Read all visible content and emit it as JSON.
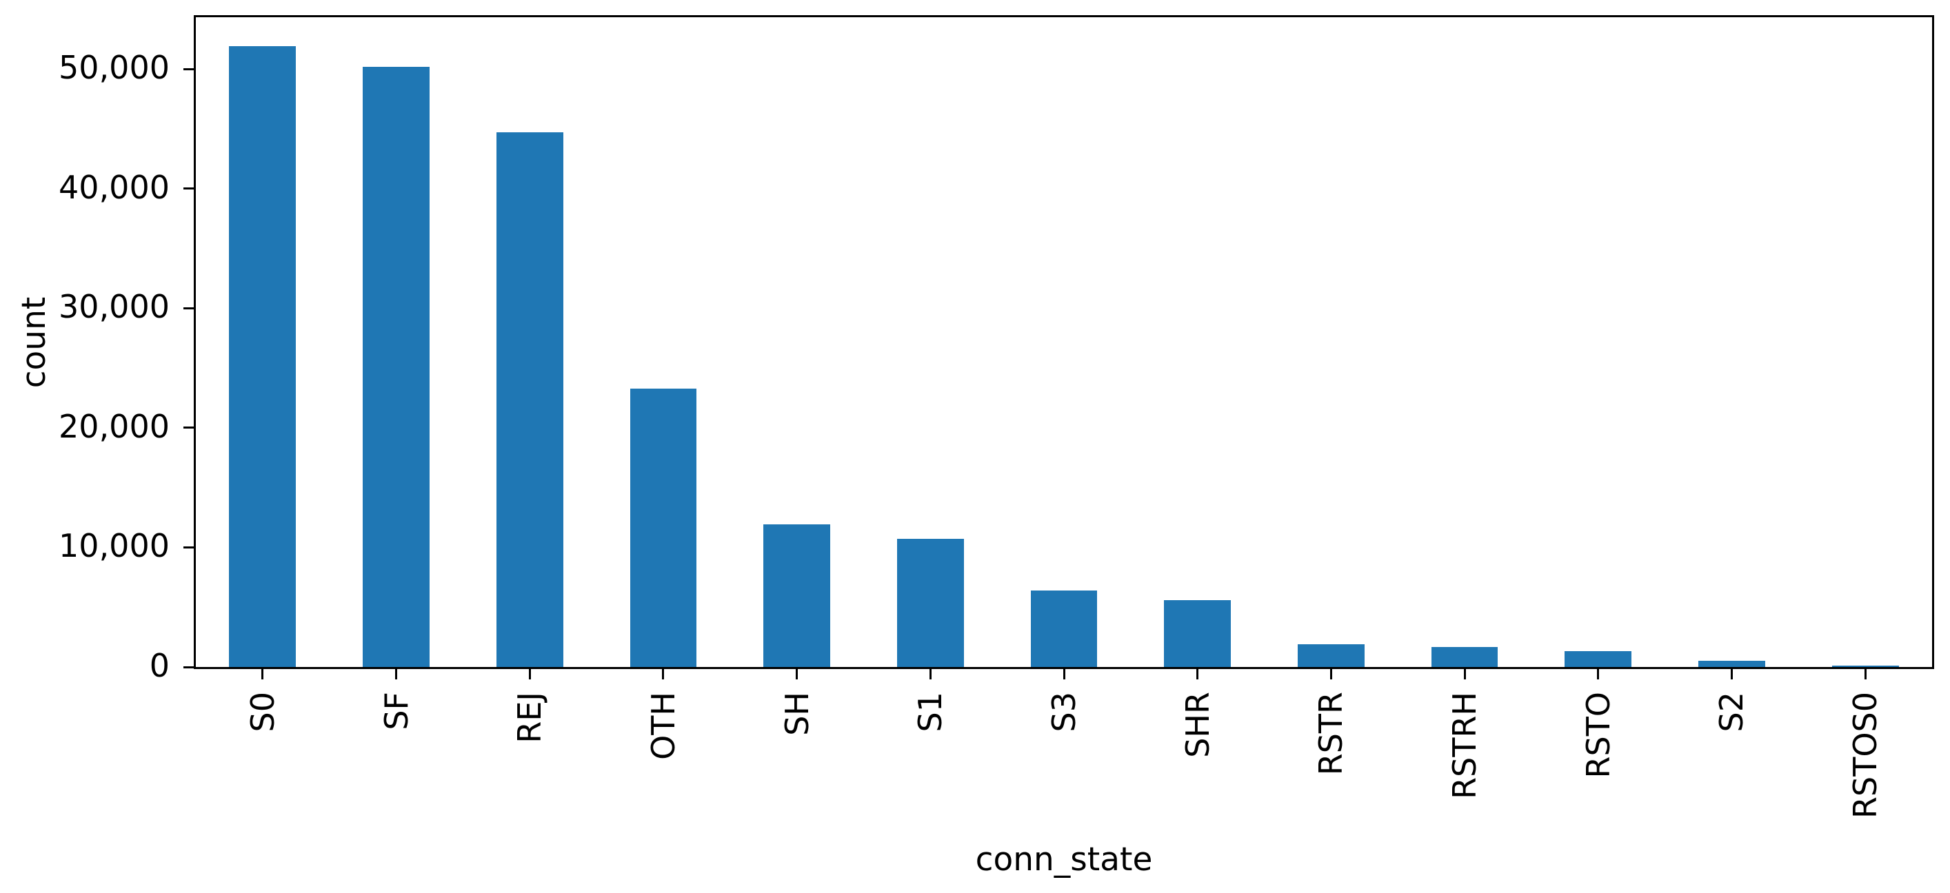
{
  "chart_data": {
    "type": "bar",
    "title": "",
    "xlabel": "conn_state",
    "ylabel": "count",
    "categories": [
      "S0",
      "SF",
      "REJ",
      "OTH",
      "SH",
      "S1",
      "S3",
      "SHR",
      "RSTR",
      "RSTRH",
      "RSTO",
      "S2",
      "RSTOS0"
    ],
    "values": [
      51900,
      50200,
      44700,
      23300,
      11900,
      10700,
      6400,
      5600,
      1900,
      1700,
      1300,
      520,
      100
    ],
    "series": [
      {
        "name": "count",
        "values": [
          51900,
          50200,
          44700,
          23300,
          11900,
          10700,
          6400,
          5600,
          1900,
          1700,
          1300,
          520,
          100
        ]
      }
    ],
    "yticks": [
      0,
      10000,
      20000,
      30000,
      40000,
      50000
    ],
    "ytick_labels": [
      "0",
      "10,000",
      "20,000",
      "30,000",
      "40,000",
      "50,000"
    ],
    "ylim": [
      0,
      54330
    ],
    "xtick_rotation": 90,
    "bar_width_fraction": 0.5,
    "grid": false,
    "legend": null,
    "bar_color": "#1f77b4",
    "axis_color": "#000000",
    "background_color": "#ffffff"
  }
}
